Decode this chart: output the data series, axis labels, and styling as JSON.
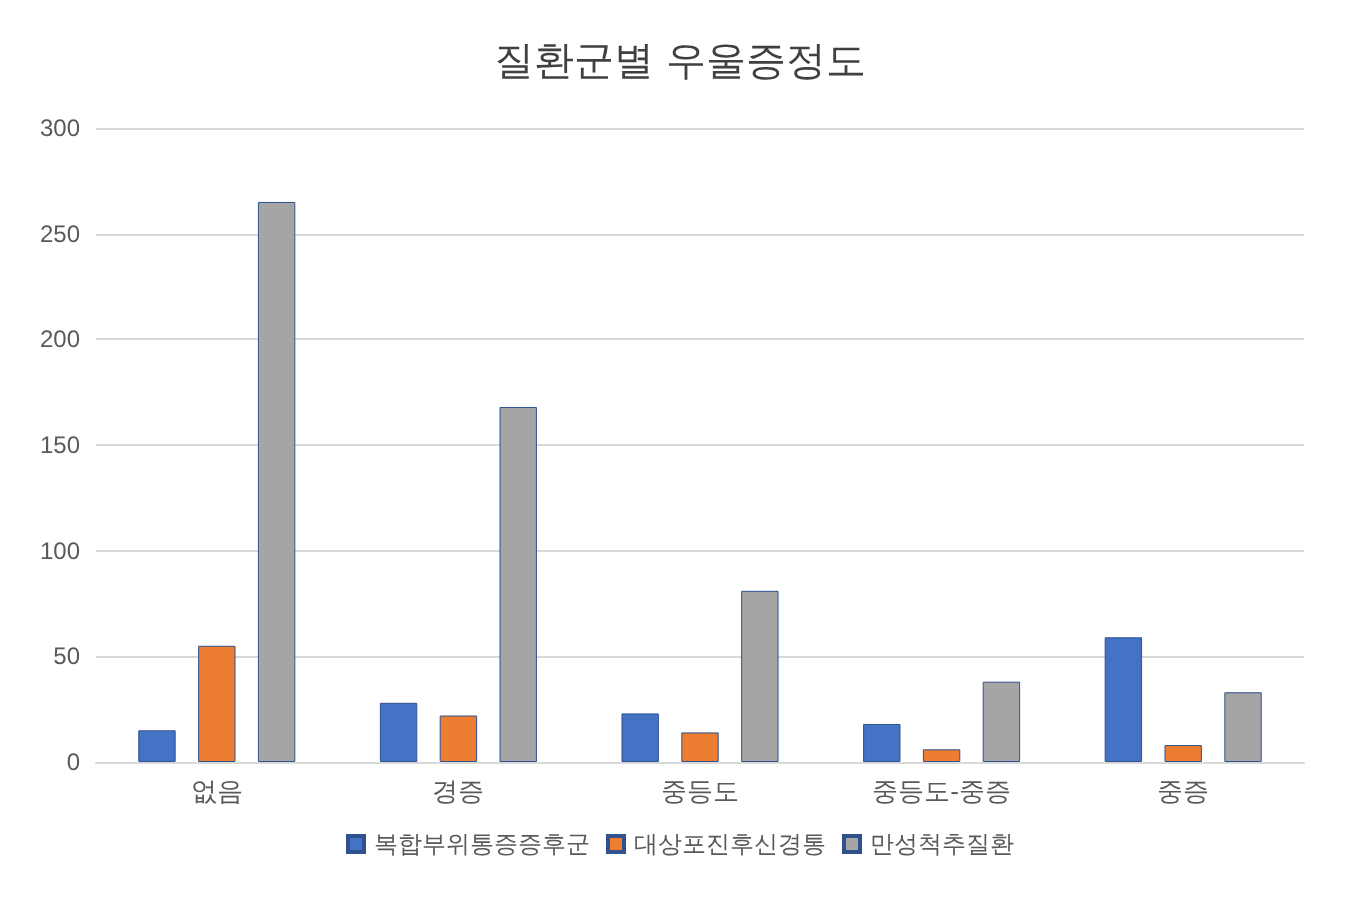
{
  "chart_data": {
    "type": "bar",
    "title": "질환군별 우울증정도",
    "categories": [
      "없음",
      "경증",
      "중등도",
      "중등도-중증",
      "중증"
    ],
    "series": [
      {
        "name": "복합부위통증증후군",
        "color": "#4472c4",
        "values": [
          15,
          28,
          23,
          18,
          59
        ]
      },
      {
        "name": "대상포진후신경통",
        "color": "#ed7d31",
        "values": [
          55,
          22,
          14,
          6,
          8
        ]
      },
      {
        "name": "만성척추질환",
        "color": "#a5a5a5",
        "values": [
          265,
          168,
          81,
          38,
          33
        ]
      }
    ],
    "ylim": [
      0,
      300
    ],
    "yticks": [
      0,
      50,
      100,
      150,
      200,
      250,
      300
    ],
    "grid": "y",
    "legend": "bottom"
  }
}
